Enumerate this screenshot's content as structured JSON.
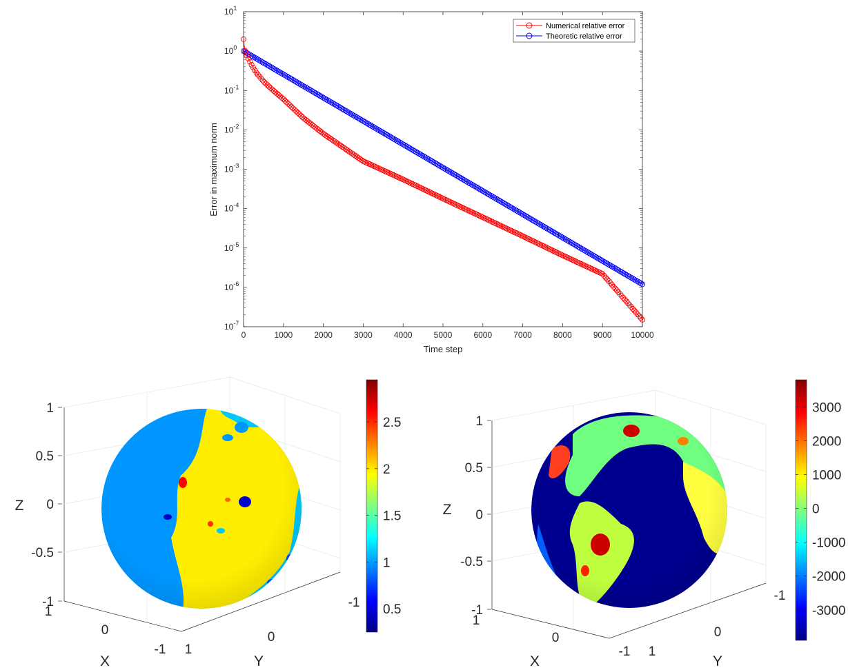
{
  "chart_data": [
    {
      "type": "line",
      "xlabel": "Time step",
      "ylabel": "Error in maximum norm",
      "xlim": [
        0,
        10000
      ],
      "ylim": [
        1e-07,
        10
      ],
      "yscale": "log",
      "grid": false,
      "legend_position": "top-right",
      "x_ticks": [
        "0",
        "1000",
        "2000",
        "3000",
        "4000",
        "5000",
        "6000",
        "7000",
        "8000",
        "9000",
        "10000"
      ],
      "y_ticks": [
        {
          "base": "10",
          "exp": "1"
        },
        {
          "base": "10",
          "exp": "0"
        },
        {
          "base": "10",
          "exp": "-1"
        },
        {
          "base": "10",
          "exp": "-2"
        },
        {
          "base": "10",
          "exp": "-3"
        },
        {
          "base": "10",
          "exp": "-4"
        },
        {
          "base": "10",
          "exp": "-5"
        },
        {
          "base": "10",
          "exp": "-6"
        },
        {
          "base": "10",
          "exp": "-7"
        }
      ],
      "series": [
        {
          "name": "Numerical relative error",
          "color": "#ff0000",
          "marker": "circle",
          "x": [
            0,
            20,
            50,
            100,
            200,
            300,
            500,
            700,
            1000,
            1500,
            2000,
            3000,
            4000,
            5000,
            6000,
            7000,
            8000,
            9000,
            10000
          ],
          "y": [
            2.0,
            1.3,
            0.9,
            0.7,
            0.45,
            0.3,
            0.17,
            0.11,
            0.06,
            0.02,
            0.008,
            0.0016,
            0.00055,
            0.00018,
            6e-05,
            2e-05,
            6.5e-06,
            2.2e-06,
            1.5e-07
          ]
        },
        {
          "name": "Theoretic relative error",
          "color": "#0000ff",
          "marker": "circle",
          "x": [
            0,
            10000
          ],
          "y": [
            1.0,
            1.2e-06
          ]
        }
      ]
    },
    {
      "type": "heatmap",
      "title": "",
      "zlabel": "Z",
      "xlabel": "X",
      "ylabel": "Y",
      "z_ticks": [
        "1",
        "0.5",
        "0",
        "-0.5",
        "-1"
      ],
      "x_ticks": [
        "1",
        "0",
        "-1"
      ],
      "y_ticks": [
        "1",
        "0",
        "-1"
      ],
      "colorbar_ticks": [
        "2.5",
        "2",
        "1.5",
        "1",
        "0.5"
      ],
      "colorbar_range": [
        0.25,
        2.95
      ],
      "colormap": "jet"
    },
    {
      "type": "heatmap",
      "title": "",
      "zlabel": "Z",
      "xlabel": "X",
      "ylabel": "Y",
      "z_ticks": [
        "1",
        "0.5",
        "0",
        "-0.5",
        "-1"
      ],
      "x_ticks": [
        "1",
        "0",
        "-1"
      ],
      "y_ticks": [
        "1",
        "0",
        "-1"
      ],
      "colorbar_ticks": [
        "3000",
        "2000",
        "1000",
        "0",
        "-1000",
        "-2000",
        "-3000"
      ],
      "colorbar_range": [
        -3900,
        3800
      ],
      "colormap": "jet"
    }
  ],
  "colors": {
    "jet_dark_blue": "#000080",
    "jet_blue": "#0000ff",
    "jet_light_blue": "#0096ff",
    "jet_cyan": "#00ffff",
    "jet_yellow": "#ffee00",
    "jet_red": "#ff0000",
    "jet_dark_red": "#800000"
  }
}
